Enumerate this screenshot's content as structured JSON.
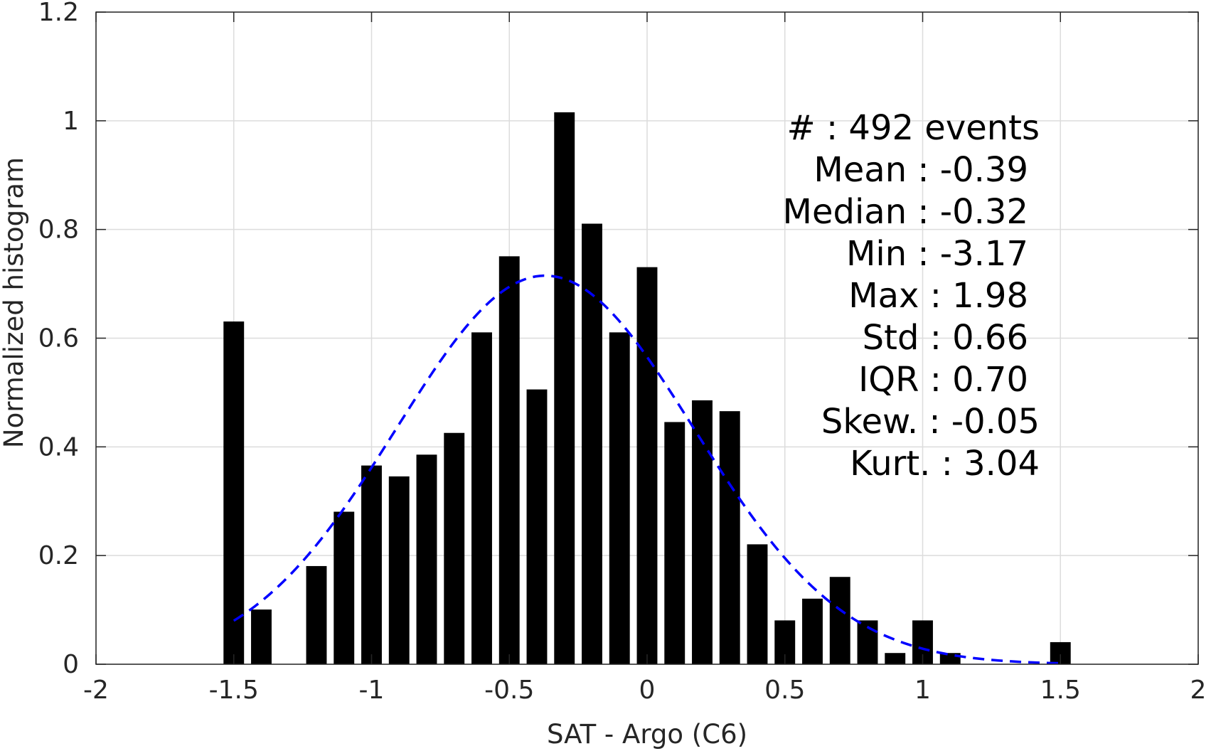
{
  "chart_data": {
    "type": "bar",
    "xlabel": "SAT - Argo (C6)",
    "ylabel": "Normalized histogram",
    "xlim": [
      -2,
      2
    ],
    "ylim": [
      0,
      1.2
    ],
    "grid": true,
    "x_ticks": [
      -2,
      -1.5,
      -1,
      -0.5,
      0,
      0.5,
      1,
      1.5,
      2
    ],
    "x_tick_labels": [
      "-2",
      "-1.5",
      "-1",
      "-0.5",
      "0",
      "0.5",
      "1",
      "1.5",
      "2"
    ],
    "y_ticks": [
      0,
      0.2,
      0.4,
      0.6,
      0.8,
      1,
      1.2
    ],
    "y_tick_labels": [
      "0",
      "0.2",
      "0.4",
      "0.6",
      "0.8",
      "1",
      "1.2"
    ],
    "bar_color": "#000000",
    "bar_width": 0.072,
    "bars": [
      {
        "x": -1.5,
        "y": 0.63
      },
      {
        "x": -1.4,
        "y": 0.1
      },
      {
        "x": -1.2,
        "y": 0.18
      },
      {
        "x": -1.1,
        "y": 0.28
      },
      {
        "x": -1.0,
        "y": 0.365
      },
      {
        "x": -0.9,
        "y": 0.345
      },
      {
        "x": -0.8,
        "y": 0.385
      },
      {
        "x": -0.7,
        "y": 0.425
      },
      {
        "x": -0.6,
        "y": 0.61
      },
      {
        "x": -0.5,
        "y": 0.75
      },
      {
        "x": -0.4,
        "y": 0.505
      },
      {
        "x": -0.3,
        "y": 1.015
      },
      {
        "x": -0.2,
        "y": 0.81
      },
      {
        "x": -0.1,
        "y": 0.61
      },
      {
        "x": 0.0,
        "y": 0.73
      },
      {
        "x": 0.1,
        "y": 0.445
      },
      {
        "x": 0.2,
        "y": 0.485
      },
      {
        "x": 0.3,
        "y": 0.465
      },
      {
        "x": 0.4,
        "y": 0.22
      },
      {
        "x": 0.5,
        "y": 0.08
      },
      {
        "x": 0.6,
        "y": 0.12
      },
      {
        "x": 0.7,
        "y": 0.16
      },
      {
        "x": 0.8,
        "y": 0.08
      },
      {
        "x": 0.9,
        "y": 0.02
      },
      {
        "x": 1.0,
        "y": 0.08
      },
      {
        "x": 1.1,
        "y": 0.02
      },
      {
        "x": 1.5,
        "y": 0.04
      }
    ],
    "fit": {
      "type": "normal",
      "mean": -0.37,
      "peak": 0.715,
      "std": 0.54,
      "x_range": [
        -1.5,
        1.5
      ],
      "color": "#0000ff",
      "style": "dashed"
    },
    "stats": {
      "lines": [
        "#   : 492 events",
        "Mean : -0.39",
        "Median : -0.32",
        "Min : -3.17",
        "Max : 1.98",
        "Std : 0.66",
        "IQR : 0.70",
        "Skew. : -0.05",
        "Kurt. : 3.04"
      ]
    }
  }
}
